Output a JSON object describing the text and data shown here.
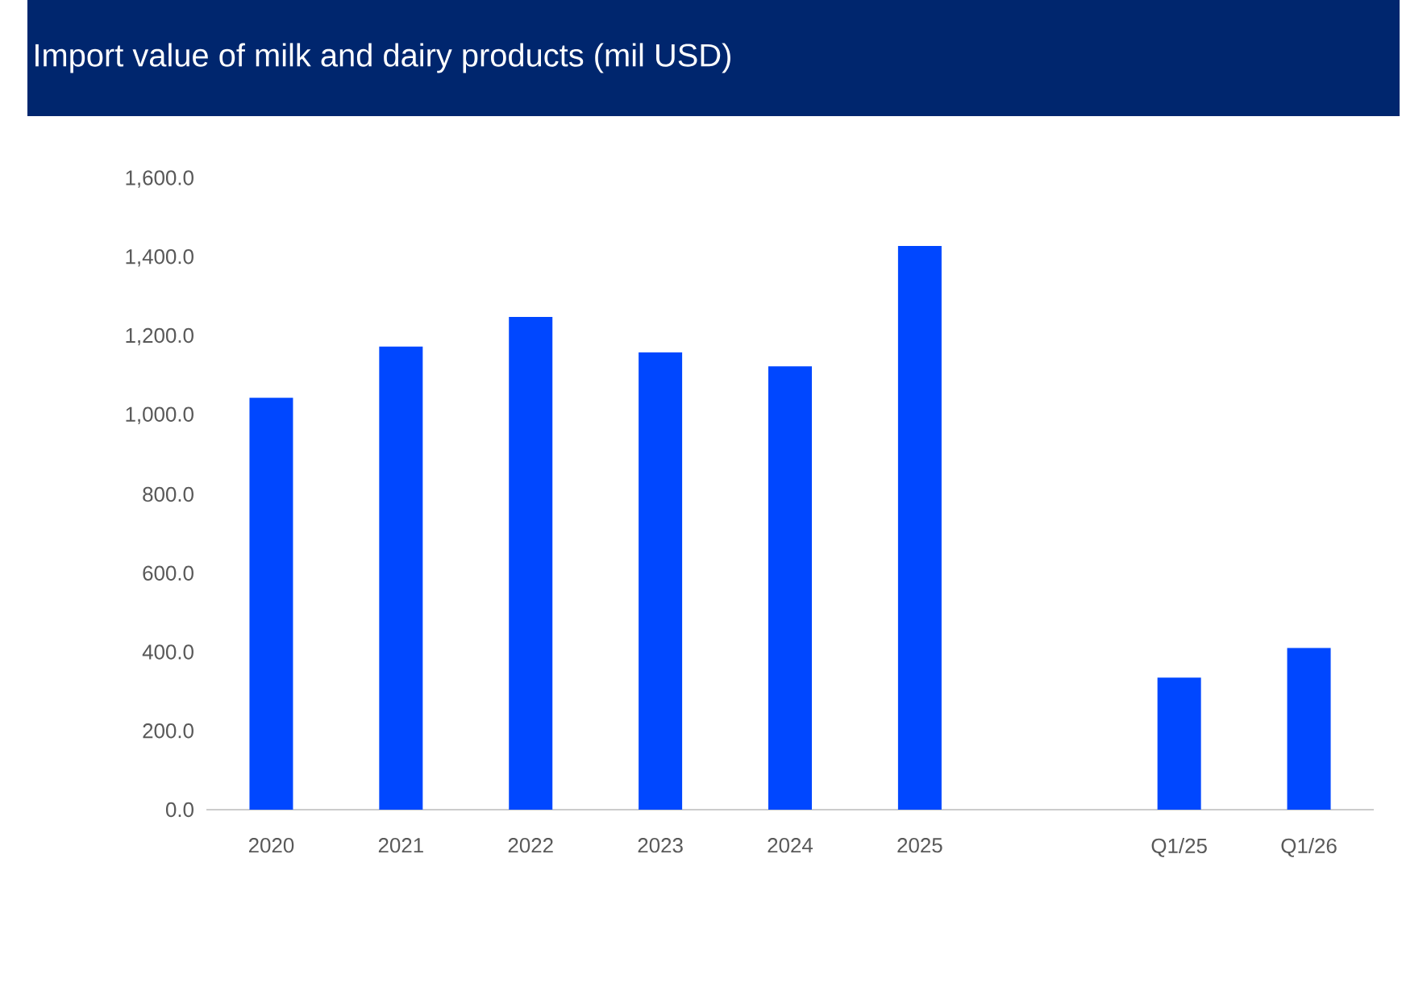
{
  "chart_data": {
    "type": "bar",
    "title": "Import value of milk and dairy products (mil USD)",
    "categories": [
      "2020",
      "2021",
      "2022",
      "2023",
      "2024",
      "2025",
      null,
      "Q1/25",
      "Q1/26"
    ],
    "values": [
      1045,
      1175,
      1250,
      1160,
      1125,
      1430,
      null,
      335,
      410
    ],
    "color": "#0047ff",
    "ylim": [
      0,
      1600
    ],
    "yticks": [
      {
        "value": 0,
        "label": "0.0"
      },
      {
        "value": 200,
        "label": "200.0"
      },
      {
        "value": 400,
        "label": "400.0"
      },
      {
        "value": 600,
        "label": "600.0"
      },
      {
        "value": 800,
        "label": "800.0"
      },
      {
        "value": 1000,
        "label": "1,000.0"
      },
      {
        "value": 1200,
        "label": "1,200.0"
      },
      {
        "value": 1400,
        "label": "1,400.0"
      },
      {
        "value": 1600,
        "label": "1,600.0"
      }
    ]
  }
}
